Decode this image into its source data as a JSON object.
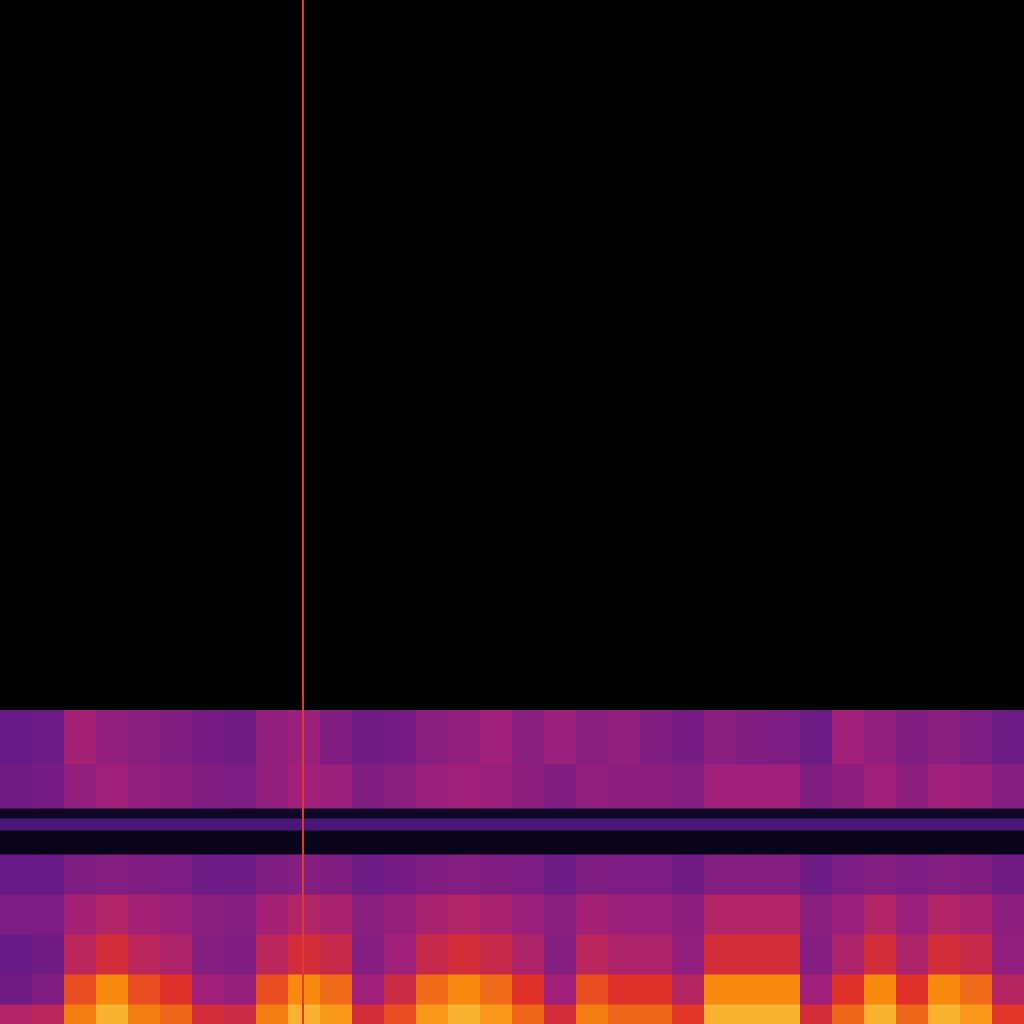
{
  "chart_data": {
    "type": "heatmap",
    "xlim": [
      0,
      1024
    ],
    "ylim": [
      0,
      1024
    ],
    "zlim": [
      0,
      100
    ],
    "grid": false,
    "tick_labels": false,
    "x_edges": [
      0,
      32,
      64,
      96,
      128,
      160,
      192,
      224,
      256,
      288,
      320,
      352,
      384,
      416,
      448,
      480,
      512,
      544,
      576,
      608,
      640,
      672,
      704,
      736,
      768,
      800,
      832,
      864,
      896,
      928,
      960,
      992,
      1024
    ],
    "y_edges": [
      0,
      20,
      50,
      90,
      130,
      170,
      194,
      206,
      216,
      260,
      314
    ],
    "cells": [
      [
        59,
        61,
        83,
        91,
        83,
        79,
        67,
        65,
        83,
        91,
        87,
        67,
        75,
        87,
        91,
        87,
        79,
        67,
        83,
        79,
        79,
        71,
        91,
        91,
        91,
        67,
        79,
        91,
        79,
        91,
        87,
        71
      ],
      [
        45,
        48,
        75,
        85,
        75,
        70,
        55,
        53,
        75,
        85,
        80,
        55,
        65,
        80,
        85,
        80,
        70,
        55,
        75,
        70,
        70,
        60,
        85,
        85,
        85,
        55,
        70,
        85,
        70,
        85,
        80,
        60
      ],
      [
        43,
        45,
        61,
        67,
        61,
        58,
        49,
        48,
        61,
        67,
        64,
        49,
        55,
        64,
        67,
        64,
        58,
        49,
        61,
        58,
        58,
        52,
        67,
        67,
        67,
        49,
        58,
        67,
        58,
        67,
        64,
        52
      ],
      [
        47,
        47,
        56,
        59,
        56,
        54,
        50,
        49,
        56,
        59,
        57,
        50,
        53,
        57,
        59,
        57,
        54,
        50,
        56,
        54,
        54,
        51,
        59,
        59,
        59,
        50,
        54,
        59,
        54,
        59,
        57,
        51
      ],
      [
        43,
        43,
        48,
        49,
        48,
        47,
        44,
        44,
        48,
        49,
        48,
        44,
        46,
        48,
        49,
        48,
        47,
        44,
        48,
        47,
        47,
        45,
        49,
        49,
        49,
        44,
        47,
        49,
        47,
        49,
        48,
        45
      ],
      [
        8,
        8,
        8,
        8,
        8,
        8,
        8,
        8,
        8,
        8,
        8,
        8,
        8,
        8,
        8,
        8,
        8,
        8,
        8,
        8,
        8,
        8,
        8,
        8,
        8,
        8,
        8,
        8,
        8,
        8,
        8,
        8
      ],
      [
        35,
        35,
        35,
        35,
        35,
        35,
        35,
        35,
        35,
        35,
        35,
        35,
        35,
        35,
        35,
        35,
        35,
        35,
        35,
        35,
        35,
        35,
        35,
        35,
        35,
        35,
        35,
        35,
        35,
        35,
        35,
        35
      ],
      [
        12,
        12,
        12,
        12,
        12,
        12,
        12,
        12,
        12,
        12,
        12,
        12,
        12,
        12,
        12,
        12,
        12,
        12,
        12,
        12,
        12,
        12,
        12,
        12,
        12,
        12,
        12,
        12,
        12,
        12,
        12,
        12
      ],
      [
        45,
        46,
        52,
        55,
        52,
        51,
        48,
        47,
        52,
        55,
        54,
        48,
        50,
        54,
        55,
        54,
        51,
        48,
        52,
        51,
        51,
        49,
        55,
        55,
        55,
        48,
        51,
        55,
        51,
        55,
        54,
        49
      ],
      [
        43,
        44,
        56,
        52,
        50,
        48,
        46,
        45,
        52,
        54,
        48,
        45,
        46,
        50,
        52,
        55,
        50,
        54,
        50,
        52,
        48,
        46,
        50,
        48,
        47,
        44,
        55,
        52,
        48,
        50,
        47,
        44
      ]
    ],
    "vertical_line": {
      "x": 303,
      "color": "#e03a2a"
    }
  }
}
